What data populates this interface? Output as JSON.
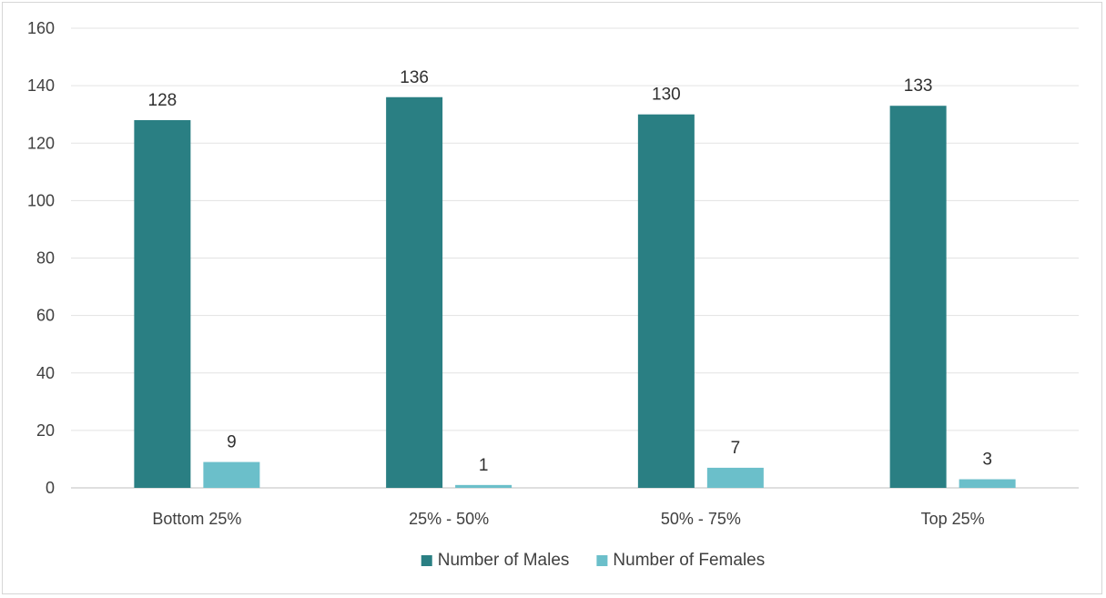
{
  "chart_data": {
    "type": "bar",
    "title": "",
    "xlabel": "",
    "ylabel": "",
    "ylim": [
      0,
      160
    ],
    "yticks": [
      0,
      20,
      40,
      60,
      80,
      100,
      120,
      140,
      160
    ],
    "grid": true,
    "legend_position": "bottom",
    "categories": [
      "Bottom 25%",
      "25% - 50%",
      "50% - 75%",
      "Top 25%"
    ],
    "series": [
      {
        "name": "Number of Males",
        "color": "#2a7f83",
        "values": [
          128,
          136,
          130,
          133
        ]
      },
      {
        "name": "Number of Females",
        "color": "#6bbfca",
        "values": [
          9,
          1,
          7,
          3
        ]
      }
    ]
  }
}
